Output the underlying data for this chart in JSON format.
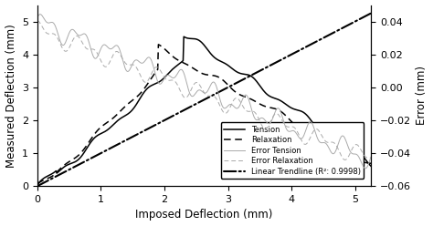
{
  "xlabel": "Imposed Deflection (mm)",
  "ylabel_left": "Measured Deflection (mm)",
  "ylabel_right": "Error (mm)",
  "xlim": [
    0,
    5.25
  ],
  "ylim_left": [
    0,
    5.5
  ],
  "ylim_right": [
    -0.06,
    0.05
  ],
  "yticks_left": [
    0,
    1,
    2,
    3,
    4,
    5
  ],
  "yticks_right": [
    -0.06,
    -0.04,
    -0.02,
    0,
    0.02,
    0.04
  ],
  "xticks": [
    0,
    1,
    2,
    3,
    4,
    5
  ],
  "legend_entries": [
    "Tension",
    "Relaxation",
    "Error Tension",
    "Error Relaxation",
    "Linear Trendline (R²: 0.9998)"
  ],
  "background_color": "#ffffff"
}
